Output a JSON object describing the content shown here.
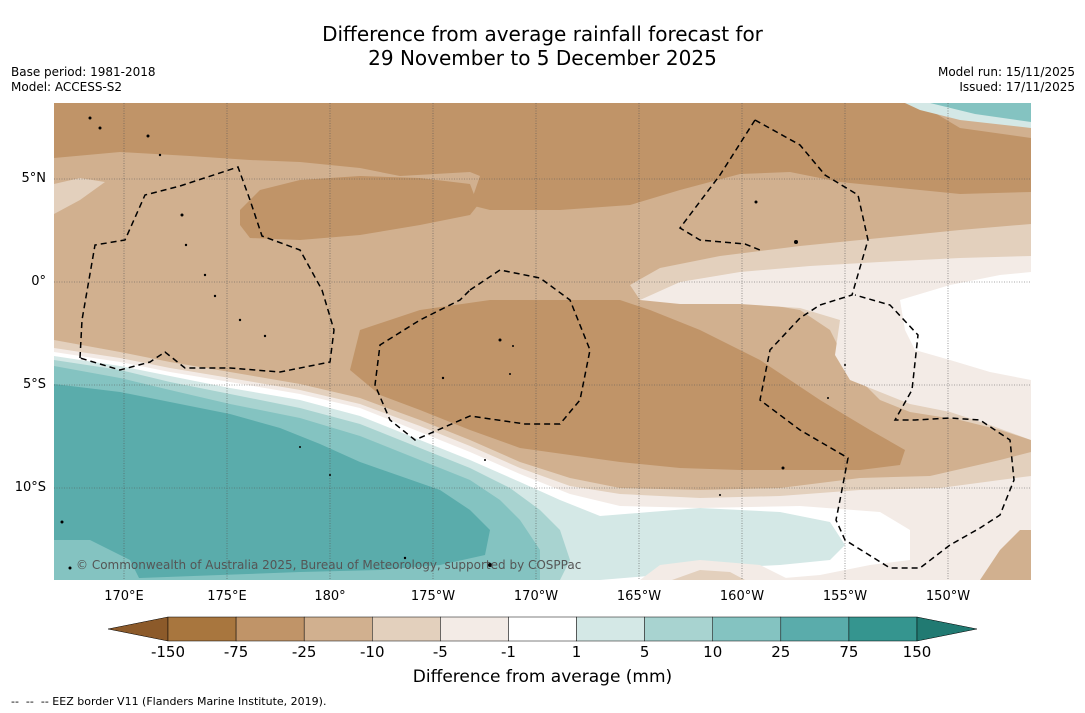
{
  "title": {
    "line1": "Difference from average rainfall forecast for",
    "line2": "29 November to 5 December 2025"
  },
  "meta": {
    "base_period": "Base period: 1981-2018",
    "model": "Model: ACCESS-S2",
    "model_run": "Model run: 15/11/2025",
    "issued": "Issued: 17/11/2025"
  },
  "map": {
    "lat_labels": [
      "5°N",
      "0°",
      "5°S",
      "10°S"
    ],
    "lon_labels": [
      "170°E",
      "175°E",
      "180°",
      "175°W",
      "170°W",
      "165°W",
      "160°W",
      "155°W",
      "150°W"
    ],
    "credit": "© Commonwealth of Australia 2025, Bureau of Meteorology, supported by COSPPac"
  },
  "legend": {
    "title": "Difference from average (mm)",
    "ticks": [
      "-150",
      "-75",
      "-25",
      "-10",
      "-5",
      "-1",
      "1",
      "5",
      "10",
      "25",
      "75",
      "150"
    ],
    "colors": {
      "lt_minus150": "#8c5a2a",
      "minus150_to_minus75": "#a8763e",
      "minus75_to_minus25": "#c09468",
      "minus25_to_minus10": "#d1b08f",
      "minus10_to_minus5": "#e3d0bd",
      "minus5_to_minus1": "#f3ebe6",
      "minus1_to_1": "#ffffff",
      "1_to_5": "#d4e8e6",
      "5_to_10": "#a8d3d0",
      "10_to_25": "#84c3c1",
      "25_to_75": "#5aacab",
      "75_to_150": "#35958f",
      "gt_150": "#217a72"
    }
  },
  "footnote": "--  --  -- EEZ border V11 (Flanders Marine Institute, 2019)."
}
